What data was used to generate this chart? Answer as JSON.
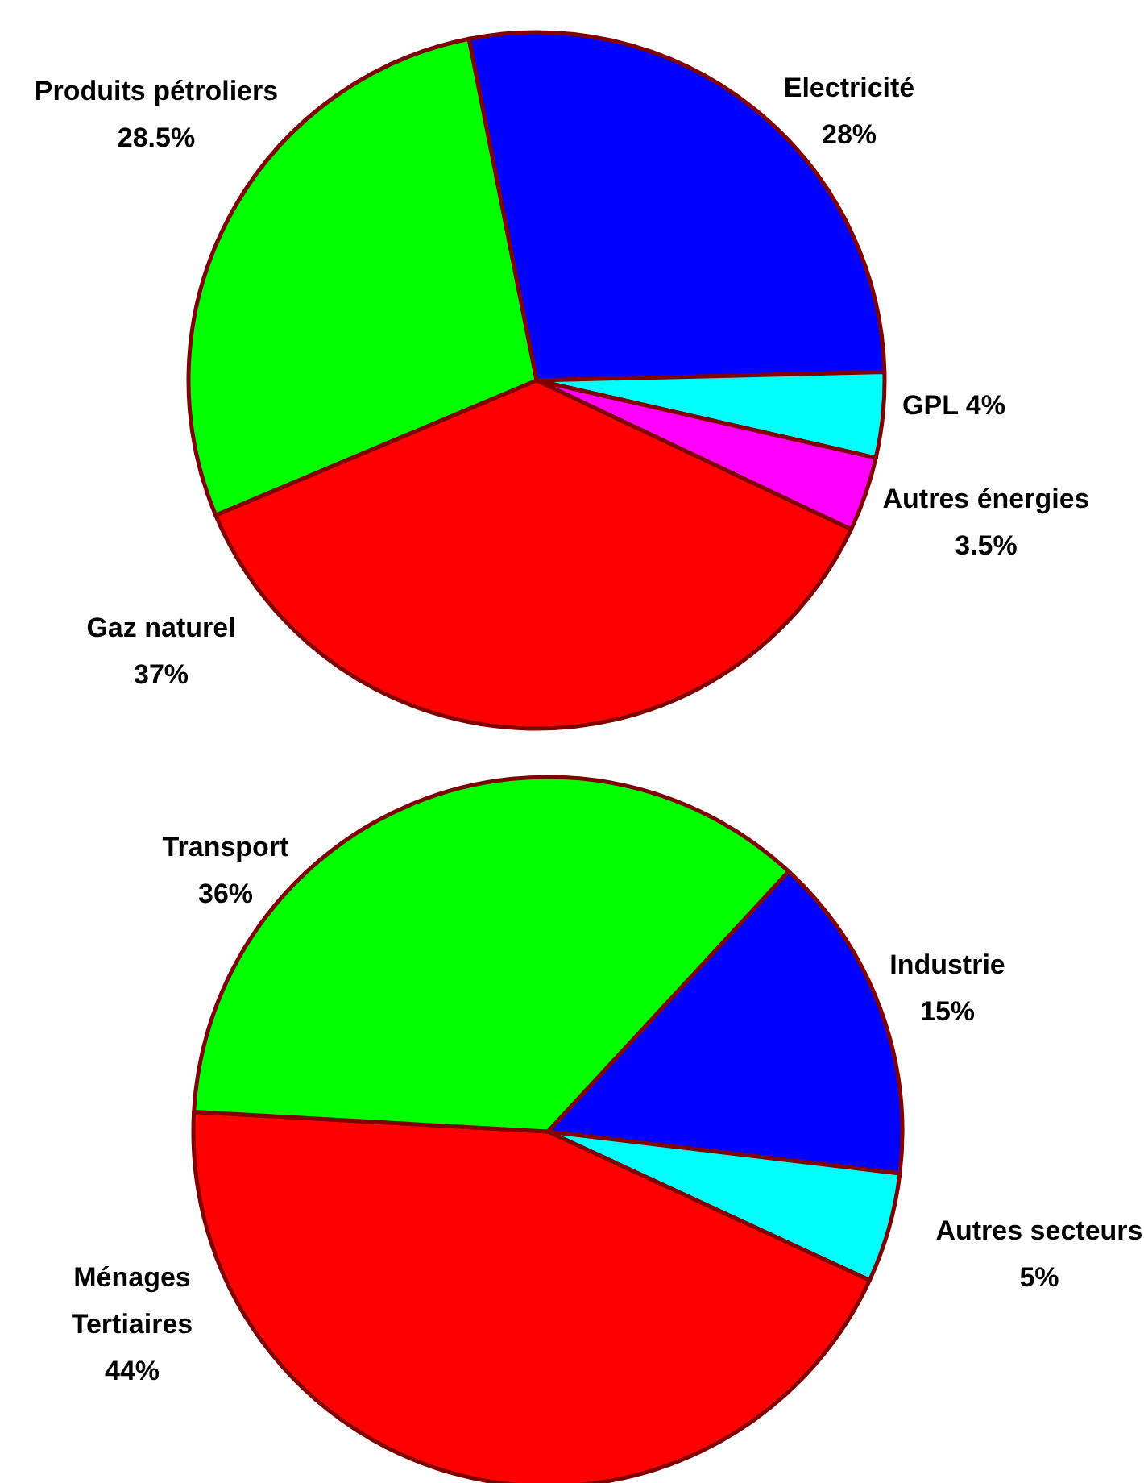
{
  "chart_data": [
    {
      "type": "pie",
      "categories": [
        "Electricité",
        "GPL",
        "Autres énergies",
        "Gaz naturel",
        "Produits pétroliers"
      ],
      "values": [
        28,
        4,
        3.5,
        37,
        28.5
      ],
      "value_labels": [
        "28%",
        "4%",
        "3.5%",
        "37%",
        "28.5%"
      ],
      "colors": [
        "#0000ff",
        "#00ffff",
        "#ff00ff",
        "#ff0000",
        "#00ff00"
      ]
    },
    {
      "type": "pie",
      "categories": [
        "Industrie",
        "Autres secteurs",
        "Ménages Tertiaires",
        "Transport"
      ],
      "values": [
        15,
        5,
        44,
        36
      ],
      "value_labels": [
        "15%",
        "5%",
        "44%",
        "36%"
      ],
      "colors": [
        "#0000ff",
        "#00ffff",
        "#ff0000",
        "#00ff00"
      ]
    }
  ]
}
